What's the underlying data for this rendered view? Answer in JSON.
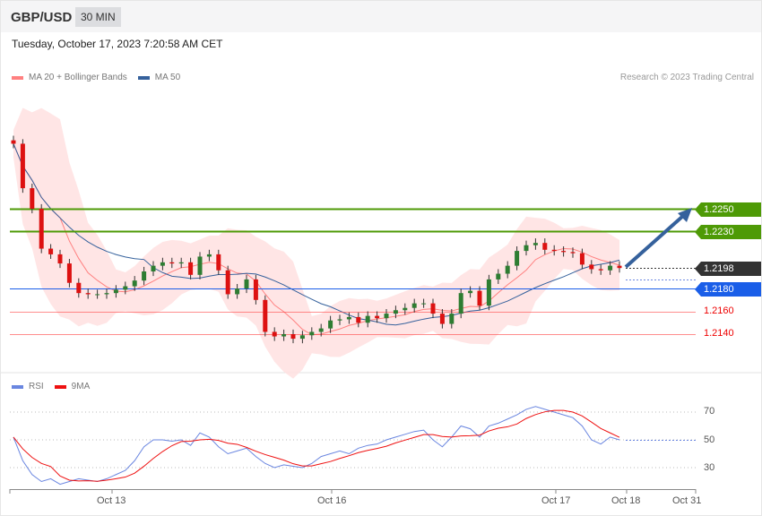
{
  "header": {
    "symbol": "GBP/USD",
    "timeframe": "30 MIN"
  },
  "timestamp": "Tuesday, October 17, 2023 7:20:58 AM CET",
  "legend": {
    "ma20": "MA 20 + Bollinger Bands",
    "ma50": "MA 50",
    "rsi": "RSI",
    "ma9": "9MA"
  },
  "credit": "Research © 2023 Trading Central",
  "colors": {
    "resistance": "#4e9a06",
    "current": "#333333",
    "pivot": "#1a5ee8",
    "support": "#ff4444",
    "ma20": "#ff8080",
    "ma50": "#35619c",
    "rsi": "#6a86e0",
    "ma9": "#ee1111",
    "band": "#ffe0e0"
  },
  "chart_data": [
    {
      "type": "candlestick",
      "ylim": [
        1.21,
        1.232
      ],
      "levels": [
        {
          "value": "1.2250",
          "kind": "resistance"
        },
        {
          "value": "1.2230",
          "kind": "resistance"
        },
        {
          "value": "1.2198",
          "kind": "current"
        },
        {
          "value": "1.2180",
          "kind": "pivot"
        },
        {
          "value": "1.2160",
          "kind": "support"
        },
        {
          "value": "1.2140",
          "kind": "support"
        }
      ],
      "closes": [
        1.2307,
        1.2268,
        1.225,
        1.2215,
        1.221,
        1.2202,
        1.2185,
        1.2176,
        1.2175,
        1.2175,
        1.2176,
        1.2179,
        1.2182,
        1.2187,
        1.2195,
        1.22,
        1.2203,
        1.2202,
        1.2203,
        1.2192,
        1.2208,
        1.221,
        1.2196,
        1.2175,
        1.218,
        1.2188,
        1.217,
        1.2142,
        1.2138,
        1.214,
        1.2136,
        1.2139,
        1.2142,
        1.2145,
        1.2152,
        1.2153,
        1.2155,
        1.215,
        1.2156,
        1.2154,
        1.2158,
        1.2161,
        1.2163,
        1.2167,
        1.2167,
        1.2158,
        1.2149,
        1.2158,
        1.2176,
        1.2178,
        1.2165,
        1.2188,
        1.2193,
        1.22,
        1.2213,
        1.2218,
        1.222,
        1.2214,
        1.2213,
        1.2212,
        1.2211,
        1.2201,
        1.2197,
        1.2196,
        1.22,
        1.2198
      ],
      "x_ticks": [
        "Oct 13",
        "Oct 16",
        "Oct 17",
        "Oct 18",
        "Oct 31"
      ]
    },
    {
      "type": "line",
      "ylim": [
        10,
        80
      ],
      "y_ticks": [
        "70",
        "50",
        "30"
      ],
      "rsi": [
        52,
        35,
        25,
        20,
        22,
        18,
        20,
        22,
        21,
        20,
        22,
        25,
        28,
        35,
        45,
        50,
        50,
        49,
        50,
        46,
        55,
        52,
        45,
        40,
        42,
        44,
        38,
        33,
        30,
        32,
        31,
        30,
        33,
        38,
        40,
        42,
        40,
        44,
        46,
        47,
        50,
        52,
        54,
        56,
        57,
        50,
        45,
        52,
        60,
        58,
        52,
        60,
        62,
        65,
        68,
        72,
        74,
        72,
        70,
        68,
        66,
        60,
        50,
        47,
        52,
        50
      ]
    }
  ]
}
